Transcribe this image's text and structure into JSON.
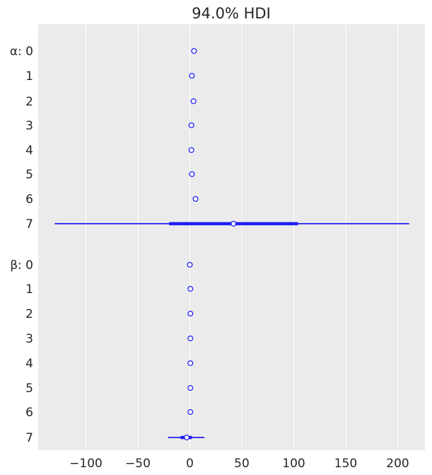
{
  "chart_data": {
    "type": "forest",
    "title": "94.0% HDI",
    "xlabel": "",
    "ylabel": "",
    "xlim": [
      -150,
      225
    ],
    "xticks": [
      -100,
      -50,
      0,
      50,
      100,
      150,
      200
    ],
    "xtick_labels": [
      "−100",
      "−50",
      "0",
      "50",
      "100",
      "150",
      "200"
    ],
    "grid": true,
    "series_color": "#1f1ff5",
    "groups": [
      {
        "name": "α",
        "rows": [
          {
            "label": "α: 0",
            "median": 4,
            "iqr": [
              3.5,
              4.5
            ],
            "hdi": [
              3,
              5
            ]
          },
          {
            "label": "1",
            "median": 2,
            "iqr": [
              1.5,
              2.5
            ],
            "hdi": [
              1,
              3
            ]
          },
          {
            "label": "2",
            "median": 3.5,
            "iqr": [
              3,
              4
            ],
            "hdi": [
              2.5,
              4.5
            ]
          },
          {
            "label": "3",
            "median": 1.5,
            "iqr": [
              1,
              2
            ],
            "hdi": [
              0.5,
              2.5
            ]
          },
          {
            "label": "4",
            "median": 1.5,
            "iqr": [
              1,
              2
            ],
            "hdi": [
              0.5,
              2.5
            ]
          },
          {
            "label": "5",
            "median": 2,
            "iqr": [
              1.5,
              2.5
            ],
            "hdi": [
              1,
              3
            ]
          },
          {
            "label": "6",
            "median": 5.5,
            "iqr": [
              5,
              6
            ],
            "hdi": [
              4.5,
              6.5
            ]
          },
          {
            "label": "7",
            "median": 42,
            "iqr": [
              -20,
              104
            ],
            "hdi": [
              -130,
              211
            ]
          }
        ]
      },
      {
        "name": "β",
        "rows": [
          {
            "label": "β: 0",
            "median": 0,
            "iqr": [
              -0.5,
              0.5
            ],
            "hdi": [
              -1,
              1
            ]
          },
          {
            "label": "1",
            "median": 0.5,
            "iqr": [
              0,
              1
            ],
            "hdi": [
              -0.5,
              1.5
            ]
          },
          {
            "label": "2",
            "median": 0.5,
            "iqr": [
              0,
              1
            ],
            "hdi": [
              -0.5,
              1.5
            ]
          },
          {
            "label": "3",
            "median": 0.5,
            "iqr": [
              0,
              1
            ],
            "hdi": [
              -0.5,
              1.5
            ]
          },
          {
            "label": "4",
            "median": 0.5,
            "iqr": [
              0,
              1
            ],
            "hdi": [
              -0.5,
              1.5
            ]
          },
          {
            "label": "5",
            "median": 0.5,
            "iqr": [
              0,
              1
            ],
            "hdi": [
              -0.5,
              1.5
            ]
          },
          {
            "label": "6",
            "median": 0.5,
            "iqr": [
              0,
              1
            ],
            "hdi": [
              -0.5,
              1.5
            ]
          },
          {
            "label": "7",
            "median": -3,
            "iqr": [
              -9,
              2
            ],
            "hdi": [
              -21,
              14
            ]
          }
        ]
      }
    ]
  }
}
